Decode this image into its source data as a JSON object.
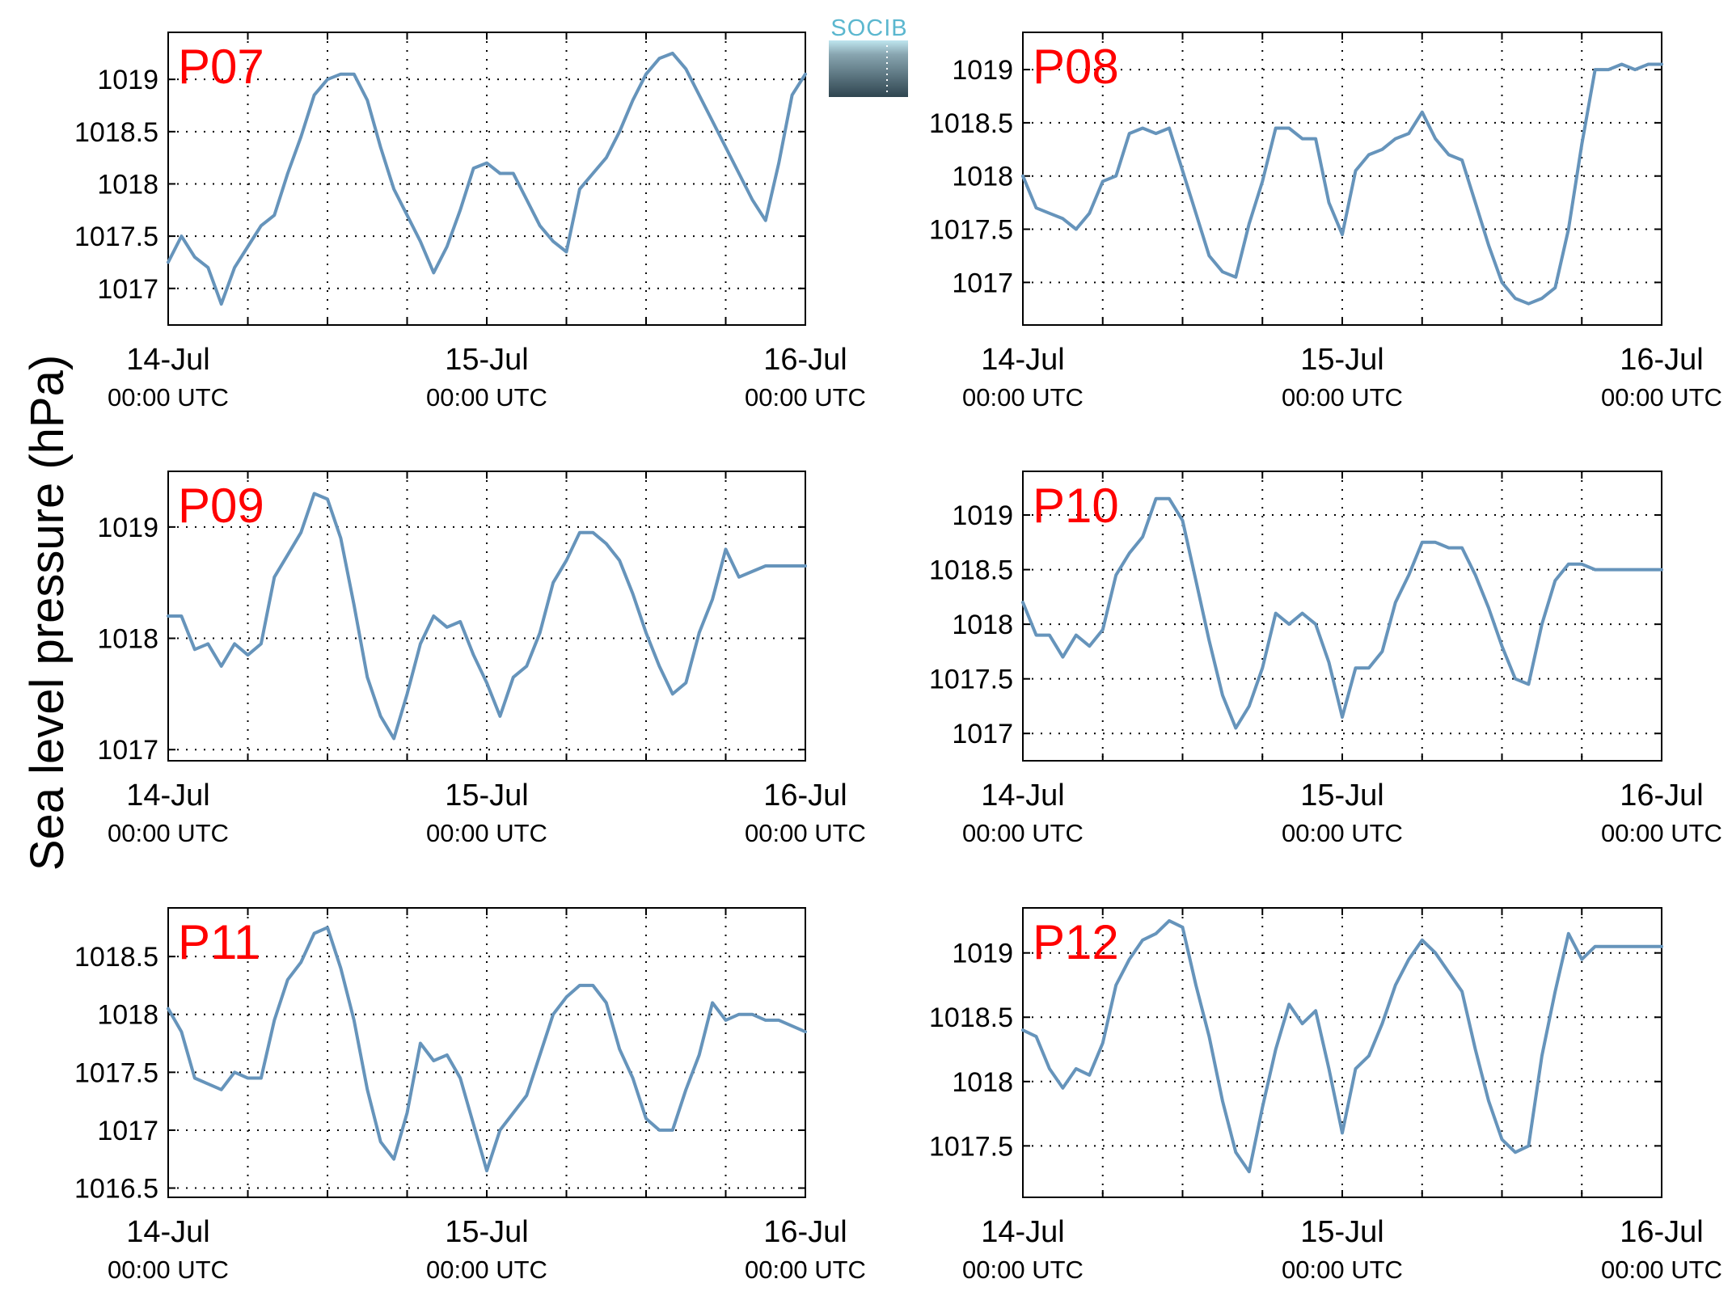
{
  "figure": {
    "ylabel": "Sea level pressure (hPa)",
    "logo_text": "SOCIB",
    "line_color": "#6694bb",
    "title_color": "#ff0000"
  },
  "chart_data": [
    {
      "type": "line",
      "title": "P07",
      "ylim": [
        1016.65,
        1019.45
      ],
      "yticks": [
        1017,
        1017.5,
        1018,
        1018.5,
        1019
      ],
      "ytick_labels": [
        "1017",
        "1017.5",
        "1018",
        "1018.5",
        "1019"
      ],
      "xlim": [
        "14-Jul 00:00",
        "16-Jul 00:00"
      ],
      "xticks": [
        {
          "date": "14-Jul",
          "time": "00:00 UTC"
        },
        {
          "date": "15-Jul",
          "time": "00:00 UTC"
        },
        {
          "date": "16-Jul",
          "time": "00:00 UTC"
        }
      ],
      "grid": true,
      "series": [
        {
          "values_time": "Hours after 14-Jul 00:00 UTC",
          "x": [
            0,
            1,
            2,
            3,
            4,
            5,
            6,
            7,
            8,
            9,
            10,
            11,
            12,
            13,
            14,
            15,
            16,
            17,
            18,
            19,
            20,
            21,
            22,
            23,
            24,
            25,
            26,
            27,
            28,
            29,
            30,
            31,
            32,
            33,
            34,
            35,
            36,
            37,
            38,
            39,
            40,
            41,
            42,
            43,
            44,
            45,
            46,
            47,
            48
          ],
          "y": [
            1017.25,
            1017.5,
            1017.3,
            1017.2,
            1016.85,
            1017.2,
            1017.4,
            1017.6,
            1017.7,
            1018.1,
            1018.45,
            1018.85,
            1019.0,
            1019.05,
            1019.05,
            1018.8,
            1018.35,
            1017.95,
            1017.7,
            1017.45,
            1017.15,
            1017.4,
            1017.75,
            1018.15,
            1018.2,
            1018.1,
            1018.1,
            1017.85,
            1017.6,
            1017.45,
            1017.35,
            1017.95,
            1018.1,
            1018.25,
            1018.5,
            1018.8,
            1019.05,
            1019.2,
            1019.25,
            1019.1,
            1018.85,
            1018.6,
            1018.35,
            1018.1,
            1017.85,
            1017.65,
            1018.2,
            1018.85,
            1019.05
          ]
        }
      ]
    },
    {
      "type": "line",
      "title": "P08",
      "ylim": [
        1016.6,
        1019.35
      ],
      "yticks": [
        1017,
        1017.5,
        1018,
        1018.5,
        1019
      ],
      "ytick_labels": [
        "1017",
        "1017.5",
        "1018",
        "1018.5",
        "1019"
      ],
      "xlim": [
        "14-Jul 00:00",
        "16-Jul 00:00"
      ],
      "xticks": [
        {
          "date": "14-Jul",
          "time": "00:00 UTC"
        },
        {
          "date": "15-Jul",
          "time": "00:00 UTC"
        },
        {
          "date": "16-Jul",
          "time": "00:00 UTC"
        }
      ],
      "grid": true,
      "series": [
        {
          "values_time": "Hours after 14-Jul 00:00 UTC",
          "x": [
            0,
            1,
            2,
            3,
            4,
            5,
            6,
            7,
            8,
            9,
            10,
            11,
            12,
            13,
            14,
            15,
            16,
            17,
            18,
            19,
            20,
            21,
            22,
            23,
            24,
            25,
            26,
            27,
            28,
            29,
            30,
            31,
            32,
            33,
            34,
            35,
            36,
            37,
            38,
            39,
            40,
            41,
            42,
            43,
            44,
            45,
            46,
            47,
            48
          ],
          "y": [
            1018.0,
            1017.7,
            1017.65,
            1017.6,
            1017.5,
            1017.65,
            1017.95,
            1018.0,
            1018.4,
            1018.45,
            1018.4,
            1018.45,
            1018.05,
            1017.65,
            1017.25,
            1017.1,
            1017.05,
            1017.55,
            1017.95,
            1018.45,
            1018.45,
            1018.35,
            1018.35,
            1017.75,
            1017.45,
            1018.05,
            1018.2,
            1018.25,
            1018.35,
            1018.4,
            1018.6,
            1018.35,
            1018.2,
            1018.15,
            1017.75,
            1017.35,
            1017.0,
            1016.85,
            1016.8,
            1016.85,
            1016.95,
            1017.5,
            1018.3,
            1019.0,
            1019.0,
            1019.05,
            1019.0,
            1019.05,
            1019.05
          ]
        }
      ]
    },
    {
      "type": "line",
      "title": "P09",
      "ylim": [
        1016.9,
        1019.5
      ],
      "yticks": [
        1017,
        1018,
        1019
      ],
      "ytick_labels": [
        "1017",
        "1018",
        "1019"
      ],
      "xlim": [
        "14-Jul 00:00",
        "16-Jul 00:00"
      ],
      "xticks": [
        {
          "date": "14-Jul",
          "time": "00:00 UTC"
        },
        {
          "date": "15-Jul",
          "time": "00:00 UTC"
        },
        {
          "date": "16-Jul",
          "time": "00:00 UTC"
        }
      ],
      "grid": true,
      "series": [
        {
          "values_time": "Hours after 14-Jul 00:00 UTC",
          "x": [
            0,
            1,
            2,
            3,
            4,
            5,
            6,
            7,
            8,
            9,
            10,
            11,
            12,
            13,
            14,
            15,
            16,
            17,
            18,
            19,
            20,
            21,
            22,
            23,
            24,
            25,
            26,
            27,
            28,
            29,
            30,
            31,
            32,
            33,
            34,
            35,
            36,
            37,
            38,
            39,
            40,
            41,
            42,
            43,
            44,
            45,
            46,
            47,
            48
          ],
          "y": [
            1018.2,
            1018.2,
            1017.9,
            1017.95,
            1017.75,
            1017.95,
            1017.85,
            1017.95,
            1018.55,
            1018.75,
            1018.95,
            1019.3,
            1019.25,
            1018.9,
            1018.3,
            1017.65,
            1017.3,
            1017.1,
            1017.5,
            1017.95,
            1018.2,
            1018.1,
            1018.15,
            1017.85,
            1017.6,
            1017.3,
            1017.65,
            1017.75,
            1018.05,
            1018.5,
            1018.7,
            1018.95,
            1018.95,
            1018.85,
            1018.7,
            1018.4,
            1018.05,
            1017.75,
            1017.5,
            1017.6,
            1018.05,
            1018.35,
            1018.8,
            1018.55,
            1018.6,
            1018.65,
            1018.65,
            1018.65,
            1018.65
          ]
        }
      ]
    },
    {
      "type": "line",
      "title": "P10",
      "ylim": [
        1016.75,
        1019.4
      ],
      "yticks": [
        1017,
        1017.5,
        1018,
        1018.5,
        1019
      ],
      "ytick_labels": [
        "1017",
        "1017.5",
        "1018",
        "1018.5",
        "1019"
      ],
      "xlim": [
        "14-Jul 00:00",
        "16-Jul 00:00"
      ],
      "xticks": [
        {
          "date": "14-Jul",
          "time": "00:00 UTC"
        },
        {
          "date": "15-Jul",
          "time": "00:00 UTC"
        },
        {
          "date": "16-Jul",
          "time": "00:00 UTC"
        }
      ],
      "grid": true,
      "series": [
        {
          "values_time": "Hours after 14-Jul 00:00 UTC",
          "x": [
            0,
            1,
            2,
            3,
            4,
            5,
            6,
            7,
            8,
            9,
            10,
            11,
            12,
            13,
            14,
            15,
            16,
            17,
            18,
            19,
            20,
            21,
            22,
            23,
            24,
            25,
            26,
            27,
            28,
            29,
            30,
            31,
            32,
            33,
            34,
            35,
            36,
            37,
            38,
            39,
            40,
            41,
            42,
            43,
            44,
            45,
            46,
            47,
            48
          ],
          "y": [
            1018.2,
            1017.9,
            1017.9,
            1017.7,
            1017.9,
            1017.8,
            1017.95,
            1018.45,
            1018.65,
            1018.8,
            1019.15,
            1019.15,
            1018.95,
            1018.4,
            1017.85,
            1017.35,
            1017.05,
            1017.25,
            1017.6,
            1018.1,
            1018.0,
            1018.1,
            1018.0,
            1017.65,
            1017.15,
            1017.6,
            1017.6,
            1017.75,
            1018.2,
            1018.45,
            1018.75,
            1018.75,
            1018.7,
            1018.7,
            1018.45,
            1018.15,
            1017.8,
            1017.5,
            1017.45,
            1018.0,
            1018.4,
            1018.55,
            1018.55,
            1018.5,
            1018.5,
            1018.5,
            1018.5,
            1018.5,
            1018.5
          ]
        }
      ]
    },
    {
      "type": "line",
      "title": "P11",
      "ylim": [
        1016.42,
        1018.92
      ],
      "yticks": [
        1016.5,
        1017,
        1017.5,
        1018,
        1018.5
      ],
      "ytick_labels": [
        "1016.5",
        "1017",
        "1017.5",
        "1018",
        "1018.5"
      ],
      "xlim": [
        "14-Jul 00:00",
        "16-Jul 00:00"
      ],
      "xticks": [
        {
          "date": "14-Jul",
          "time": "00:00 UTC"
        },
        {
          "date": "15-Jul",
          "time": "00:00 UTC"
        },
        {
          "date": "16-Jul",
          "time": "00:00 UTC"
        }
      ],
      "grid": true,
      "series": [
        {
          "values_time": "Hours after 14-Jul 00:00 UTC",
          "x": [
            0,
            1,
            2,
            3,
            4,
            5,
            6,
            7,
            8,
            9,
            10,
            11,
            12,
            13,
            14,
            15,
            16,
            17,
            18,
            19,
            20,
            21,
            22,
            23,
            24,
            25,
            26,
            27,
            28,
            29,
            30,
            31,
            32,
            33,
            34,
            35,
            36,
            37,
            38,
            39,
            40,
            41,
            42,
            43,
            44,
            45,
            46,
            47,
            48
          ],
          "y": [
            1018.05,
            1017.85,
            1017.45,
            1017.4,
            1017.35,
            1017.5,
            1017.45,
            1017.45,
            1017.95,
            1018.3,
            1018.45,
            1018.7,
            1018.75,
            1018.4,
            1017.95,
            1017.35,
            1016.9,
            1016.75,
            1017.15,
            1017.75,
            1017.6,
            1017.65,
            1017.45,
            1017.05,
            1016.65,
            1017.0,
            1017.15,
            1017.3,
            1017.65,
            1018.0,
            1018.15,
            1018.25,
            1018.25,
            1018.1,
            1017.7,
            1017.45,
            1017.1,
            1017.0,
            1017.0,
            1017.35,
            1017.65,
            1018.1,
            1017.95,
            1018.0,
            1018.0,
            1017.95,
            1017.95,
            1017.9,
            1017.85
          ]
        }
      ]
    },
    {
      "type": "line",
      "title": "P12",
      "ylim": [
        1017.1,
        1019.35
      ],
      "yticks": [
        1017.5,
        1018,
        1018.5,
        1019
      ],
      "ytick_labels": [
        "1017.5",
        "1018",
        "1018.5",
        "1019"
      ],
      "xlim": [
        "14-Jul 00:00",
        "16-Jul 00:00"
      ],
      "xticks": [
        {
          "date": "14-Jul",
          "time": "00:00 UTC"
        },
        {
          "date": "15-Jul",
          "time": "00:00 UTC"
        },
        {
          "date": "16-Jul",
          "time": "00:00 UTC"
        }
      ],
      "grid": true,
      "series": [
        {
          "values_time": "Hours after 14-Jul 00:00 UTC",
          "x": [
            0,
            1,
            2,
            3,
            4,
            5,
            6,
            7,
            8,
            9,
            10,
            11,
            12,
            13,
            14,
            15,
            16,
            17,
            18,
            19,
            20,
            21,
            22,
            23,
            24,
            25,
            26,
            27,
            28,
            29,
            30,
            31,
            32,
            33,
            34,
            35,
            36,
            37,
            38,
            39,
            40,
            41,
            42,
            43,
            44,
            45,
            46,
            47,
            48
          ],
          "y": [
            1018.4,
            1018.35,
            1018.1,
            1017.95,
            1018.1,
            1018.05,
            1018.3,
            1018.75,
            1018.95,
            1019.1,
            1019.15,
            1019.25,
            1019.2,
            1018.75,
            1018.35,
            1017.85,
            1017.45,
            1017.3,
            1017.8,
            1018.25,
            1018.6,
            1018.45,
            1018.55,
            1018.1,
            1017.6,
            1018.1,
            1018.2,
            1018.45,
            1018.75,
            1018.95,
            1019.1,
            1019.0,
            1018.85,
            1018.7,
            1018.25,
            1017.85,
            1017.55,
            1017.45,
            1017.5,
            1018.2,
            1018.7,
            1019.15,
            1018.95,
            1019.05,
            1019.05,
            1019.05,
            1019.05,
            1019.05,
            1019.05
          ]
        }
      ]
    }
  ]
}
